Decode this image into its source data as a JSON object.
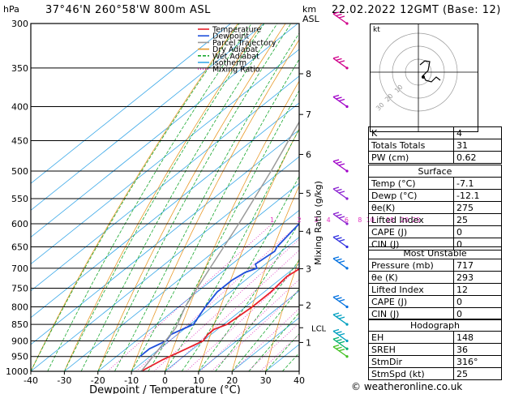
{
  "header": {
    "location": "37°46'N  260°58'W  800m  ASL",
    "datetime": "22.02.2022  12GMT  (Base: 12)",
    "left_unit": "hPa",
    "km_unit": "km",
    "asl_unit": "ASL",
    "copyright": "© weatheronline.co.uk"
  },
  "chart_data": {
    "type": "line",
    "subtype": "skew-T log-p",
    "xlabel": "Dewpoint / Temperature (°C)",
    "ylabel_right": "Mixing Ratio (g/kg)",
    "pressure_levels": [
      300,
      350,
      400,
      450,
      500,
      550,
      600,
      650,
      700,
      750,
      800,
      850,
      900,
      950,
      1000
    ],
    "pressure_labels": [
      "300",
      "350",
      "400",
      "450",
      "500",
      "550",
      "600",
      "650",
      "700",
      "750",
      "800",
      "850",
      "900",
      "950",
      "1000"
    ],
    "x_ticks": [
      -40,
      -30,
      -20,
      -10,
      0,
      10,
      20,
      30,
      40
    ],
    "x_tick_labels": [
      "-40",
      "-30",
      "-20",
      "-10",
      "0",
      "10",
      "20",
      "30",
      "40"
    ],
    "xlim": [
      -40,
      40
    ],
    "ylim": [
      1000,
      300
    ],
    "y_scale": "log",
    "km_ticks": [
      {
        "label": "8",
        "p": 357
      },
      {
        "label": "7",
        "p": 411
      },
      {
        "label": "6",
        "p": 472
      },
      {
        "label": "5",
        "p": 540
      },
      {
        "label": "4",
        "p": 616
      },
      {
        "label": "3",
        "p": 701
      },
      {
        "label": "2",
        "p": 795
      },
      {
        "label": "1",
        "p": 905
      }
    ],
    "lcl": {
      "label": "LCL",
      "p": 860
    },
    "mixing_ratio_labels": [
      "1",
      "2",
      "3",
      "4",
      "6",
      "8",
      "10",
      "15",
      "20",
      "25"
    ],
    "mixing_ratio_values": [
      1,
      2,
      3,
      4,
      6,
      8,
      10,
      15,
      20,
      25
    ],
    "legend": [
      "Temperature",
      "Dewpoint",
      "Parcel Trajectory",
      "Dry Adiabat",
      "Wet Adiabat",
      "Isotherm",
      "Mixing Ratio"
    ],
    "legend_position": "top-left",
    "series": [
      {
        "name": "Temperature",
        "color": "#e8202a",
        "points": [
          [
            1000,
            -7.1
          ],
          [
            960,
            -5
          ],
          [
            925,
            -2
          ],
          [
            900,
            0
          ],
          [
            880,
            -1
          ],
          [
            865,
            -1
          ],
          [
            850,
            1
          ],
          [
            800,
            2
          ],
          [
            760,
            2
          ],
          [
            720,
            1
          ],
          [
            700,
            2
          ],
          [
            650,
            3
          ],
          [
            600,
            3
          ],
          [
            550,
            1
          ],
          [
            500,
            -3
          ],
          [
            450,
            -9
          ],
          [
            400,
            -16
          ],
          [
            350,
            -21
          ],
          [
            320,
            -27
          ],
          [
            300,
            -31
          ]
        ]
      },
      {
        "name": "Dewpoint",
        "color": "#1e50dc",
        "points": [
          [
            950,
            -13
          ],
          [
            925,
            -13
          ],
          [
            900,
            -11
          ],
          [
            880,
            -12
          ],
          [
            850,
            -9
          ],
          [
            800,
            -12
          ],
          [
            760,
            -14
          ],
          [
            730,
            -14
          ],
          [
            710,
            -13
          ],
          [
            700,
            -11
          ],
          [
            690,
            -13
          ],
          [
            660,
            -12
          ],
          [
            650,
            -13
          ],
          [
            600,
            -15
          ],
          [
            550,
            -17
          ],
          [
            520,
            -16
          ],
          [
            500,
            -16
          ],
          [
            470,
            -22
          ],
          [
            450,
            -24
          ],
          [
            420,
            -28
          ],
          [
            400,
            -29
          ],
          [
            375,
            -34
          ],
          [
            350,
            -43
          ],
          [
            320,
            -45
          ],
          [
            300,
            -43
          ]
        ]
      },
      {
        "name": "Parcel Trajectory",
        "color": "#9a9a9a",
        "points": [
          [
            1000,
            -7.1
          ],
          [
            860,
            -13
          ],
          [
            800,
            -18
          ],
          [
            700,
            -25
          ],
          [
            600,
            -33
          ],
          [
            500,
            -43
          ],
          [
            400,
            -56
          ],
          [
            300,
            -72
          ]
        ]
      }
    ]
  },
  "wind_barb_colors": [
    "#d0008a",
    "#a000c8",
    "#8a20d0",
    "#3030e0",
    "#0070e0",
    "#00a0c0",
    "#00b070",
    "#40c020"
  ],
  "hodograph": {
    "label": "kt",
    "ring_labels": [
      "10",
      "20",
      "30"
    ]
  },
  "indices": {
    "top": [
      {
        "label": "K",
        "value": "4"
      },
      {
        "label": "Totals Totals",
        "value": "31"
      },
      {
        "label": "PW (cm)",
        "value": "0.62"
      }
    ],
    "surface_title": "Surface",
    "surface": [
      {
        "label": "Temp (°C)",
        "value": "-7.1"
      },
      {
        "label": "Dewp (°C)",
        "value": "-12.1"
      },
      {
        "label": "θe(K)",
        "value": "275"
      },
      {
        "label": "Lifted Index",
        "value": "25"
      },
      {
        "label": "CAPE (J)",
        "value": "0"
      },
      {
        "label": "CIN (J)",
        "value": "0"
      }
    ],
    "unstable_title": "Most Unstable",
    "unstable": [
      {
        "label": "Pressure (mb)",
        "value": "717"
      },
      {
        "label": "θe (K)",
        "value": "293"
      },
      {
        "label": "Lifted Index",
        "value": "12"
      },
      {
        "label": "CAPE (J)",
        "value": "0"
      },
      {
        "label": "CIN (J)",
        "value": "0"
      }
    ],
    "hodo_title": "Hodograph",
    "hodo": [
      {
        "label": "EH",
        "value": "148"
      },
      {
        "label": "SREH",
        "value": "36"
      },
      {
        "label": "StmDir",
        "value": "316°"
      },
      {
        "label": "StmSpd (kt)",
        "value": "25"
      }
    ]
  }
}
